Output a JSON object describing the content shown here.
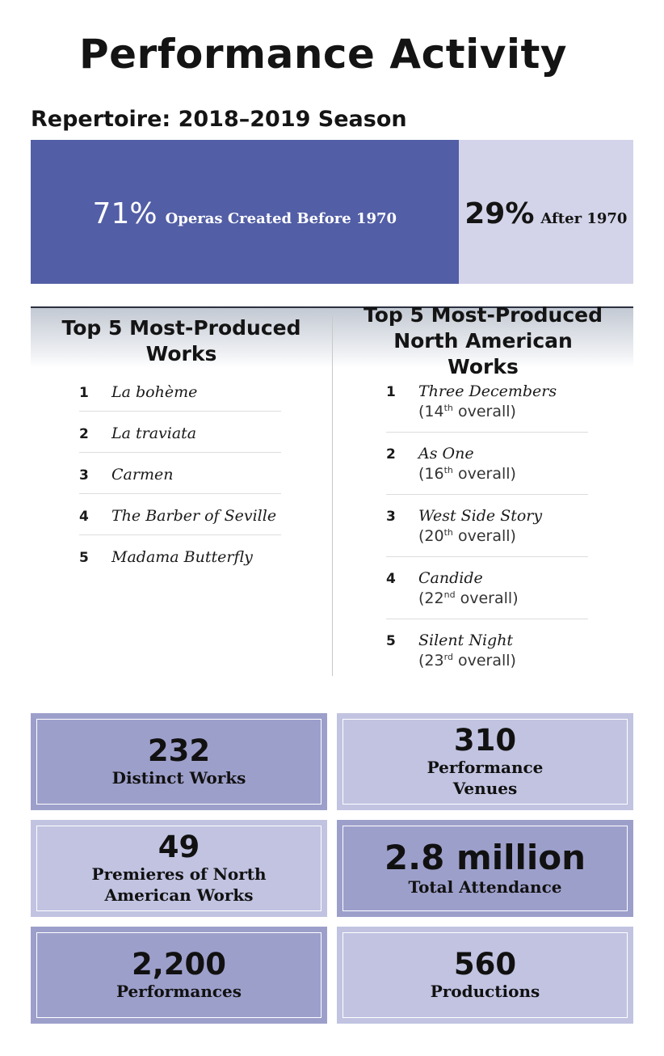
{
  "title": "Performance Activity",
  "subtitle": "Repertoire: 2018–2019 Season",
  "repertoire_bar": {
    "before": {
      "percent": "71%",
      "label": "Operas Created Before 1970",
      "value": 71,
      "color": "#525ea6"
    },
    "after": {
      "percent": "29%",
      "label": "After 1970",
      "value": 29,
      "color": "#d3d4e9"
    }
  },
  "top_works": {
    "heading": "Top 5 Most-Produced Works",
    "items": [
      {
        "rank": "1",
        "work": "La bohème"
      },
      {
        "rank": "2",
        "work": "La traviata"
      },
      {
        "rank": "3",
        "work": "Carmen"
      },
      {
        "rank": "4",
        "work": "The Barber of Seville"
      },
      {
        "rank": "5",
        "work": "Madama Butterfly"
      }
    ]
  },
  "top_na_works": {
    "heading": "Top 5 Most-Produced North American Works",
    "items": [
      {
        "rank": "1",
        "work": "Three Decembers",
        "overall_num": "14",
        "overall_suffix": "th",
        "overall_word": "overall"
      },
      {
        "rank": "2",
        "work": "As One",
        "overall_num": "16",
        "overall_suffix": "th",
        "overall_word": "overall"
      },
      {
        "rank": "3",
        "work": "West Side Story",
        "overall_num": "20",
        "overall_suffix": "th",
        "overall_word": "overall"
      },
      {
        "rank": "4",
        "work": "Candide",
        "overall_num": "22",
        "overall_suffix": "nd",
        "overall_word": "overall"
      },
      {
        "rank": "5",
        "work": "Silent Night",
        "overall_num": "23",
        "overall_suffix": "rd",
        "overall_word": "overall"
      }
    ]
  },
  "stats": [
    {
      "value": "232",
      "label": "Distinct Works",
      "shade": "dark"
    },
    {
      "value": "310",
      "label": "Performance Venues",
      "shade": "light"
    },
    {
      "value": "49",
      "label": "Premieres of North American Works",
      "shade": "light"
    },
    {
      "value": "2.8 million",
      "label": "Total Attendance",
      "shade": "dark"
    },
    {
      "value": "2,200",
      "label": "Performances",
      "shade": "dark"
    },
    {
      "value": "560",
      "label": "Productions",
      "shade": "light"
    }
  ]
}
